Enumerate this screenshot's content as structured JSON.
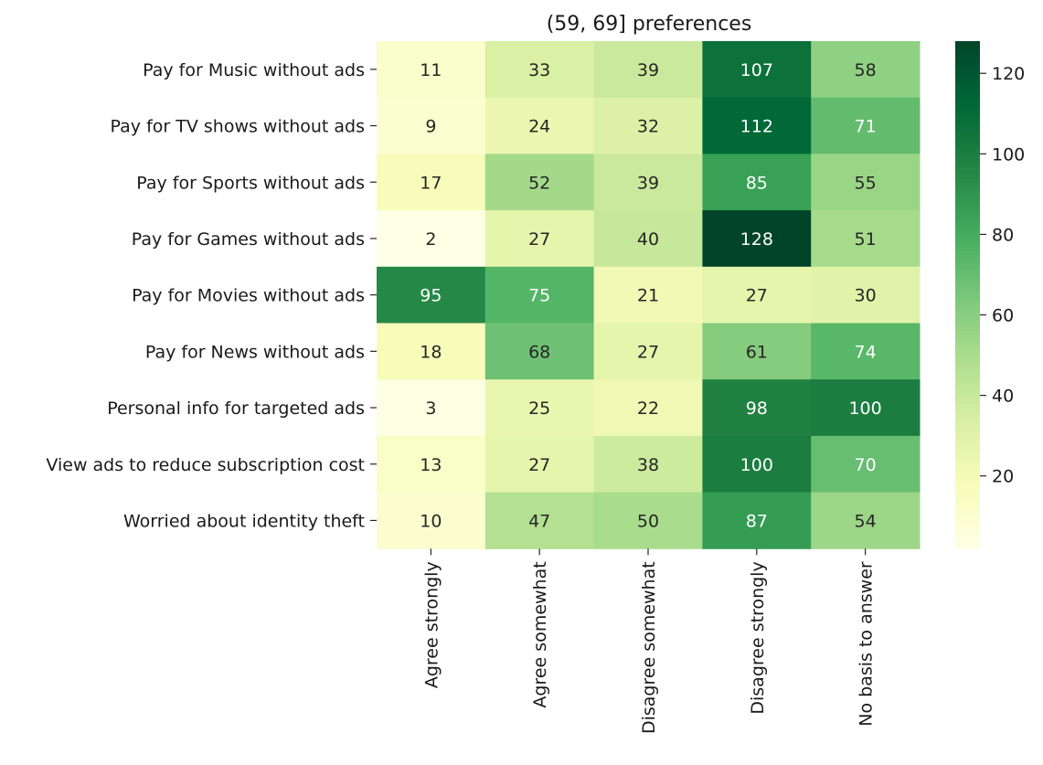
{
  "chart_data": {
    "type": "heatmap",
    "title": "(59, 69] preferences",
    "rows": [
      "Pay for Music without ads",
      "Pay for TV shows without ads",
      "Pay for Sports without ads",
      "Pay for Games without ads",
      "Pay for Movies without ads",
      "Pay for News without ads",
      "Personal info for targeted ads",
      "View ads to reduce subscription cost",
      "Worried about identity theft"
    ],
    "columns": [
      "Agree strongly",
      "Agree somewhat",
      "Disagree somewhat",
      "Disagree strongly",
      "No basis to answer"
    ],
    "values": [
      [
        11,
        33,
        39,
        107,
        58
      ],
      [
        9,
        24,
        32,
        112,
        71
      ],
      [
        17,
        52,
        39,
        85,
        55
      ],
      [
        2,
        27,
        40,
        128,
        51
      ],
      [
        95,
        75,
        21,
        27,
        30
      ],
      [
        18,
        68,
        27,
        61,
        74
      ],
      [
        3,
        25,
        22,
        98,
        100
      ],
      [
        13,
        27,
        38,
        100,
        70
      ],
      [
        10,
        47,
        50,
        87,
        54
      ]
    ],
    "colormap": "YlGn",
    "colorbar": {
      "min": 2,
      "max": 128,
      "ticks": [
        20,
        40,
        60,
        80,
        100,
        120
      ]
    },
    "annotated": true
  }
}
